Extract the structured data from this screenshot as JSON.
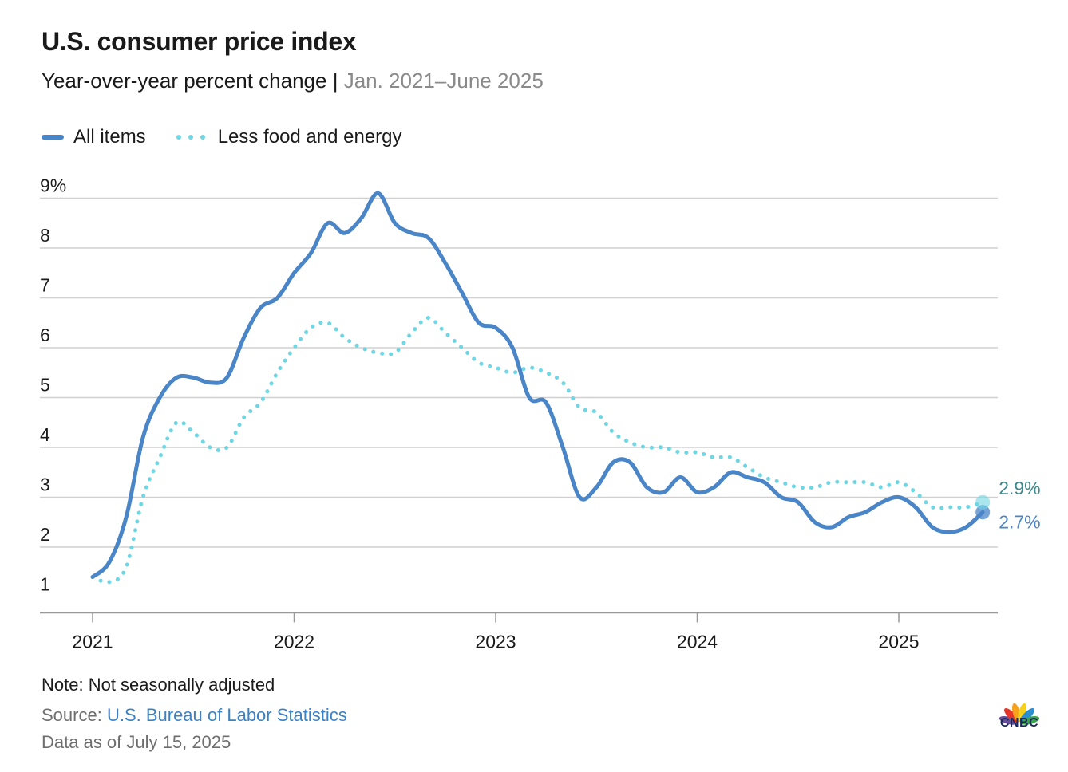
{
  "header": {
    "title": "U.S. consumer price index",
    "subtitle_main": "Year-over-year percent change",
    "subtitle_sep": " | ",
    "subtitle_range": "Jan. 2021–June 2025"
  },
  "legend": {
    "all_items": "All items",
    "core": "Less food and energy"
  },
  "colors": {
    "all_items": "#4a85c8",
    "core": "#6fd6e3",
    "all_items_label": "#4a85c8",
    "core_label": "#3c8a8c",
    "grid": "#d0d0d0",
    "axis": "#999999"
  },
  "chart_data": {
    "type": "line",
    "title": "U.S. consumer price index",
    "subtitle": "Year-over-year percent change | Jan. 2021–June 2025",
    "ylim": [
      1,
      9
    ],
    "yticks": [
      1,
      2,
      3,
      4,
      5,
      6,
      7,
      8,
      9
    ],
    "ytick_labels": [
      "1",
      "2",
      "3",
      "4",
      "5",
      "6",
      "7",
      "8",
      "9%"
    ],
    "xticks": [
      2021,
      2022,
      2023,
      2024,
      2025
    ],
    "xtick_labels": [
      "2021",
      "2022",
      "2023",
      "2024",
      "2025"
    ],
    "x_start": "2021-01",
    "x_end": "2025-06",
    "grid": "horizontal",
    "legend_position": "top-left",
    "series": [
      {
        "name": "All items",
        "style": "solid",
        "end_label": "2.7%",
        "values": [
          1.4,
          1.7,
          2.6,
          4.2,
          5.0,
          5.4,
          5.4,
          5.3,
          5.4,
          6.2,
          6.8,
          7.0,
          7.5,
          7.9,
          8.5,
          8.3,
          8.6,
          9.1,
          8.5,
          8.3,
          8.2,
          7.7,
          7.1,
          6.5,
          6.4,
          6.0,
          5.0,
          4.9,
          4.0,
          3.0,
          3.2,
          3.7,
          3.7,
          3.2,
          3.1,
          3.4,
          3.1,
          3.2,
          3.5,
          3.4,
          3.3,
          3.0,
          2.9,
          2.5,
          2.4,
          2.6,
          2.7,
          2.9,
          3.0,
          2.8,
          2.4,
          2.3,
          2.4,
          2.7
        ]
      },
      {
        "name": "Less food and energy",
        "style": "dotted",
        "end_label": "2.9%",
        "values": [
          1.4,
          1.3,
          1.6,
          3.0,
          3.8,
          4.5,
          4.3,
          4.0,
          4.0,
          4.6,
          4.9,
          5.5,
          6.0,
          6.4,
          6.5,
          6.2,
          6.0,
          5.9,
          5.9,
          6.3,
          6.6,
          6.3,
          6.0,
          5.7,
          5.6,
          5.5,
          5.6,
          5.5,
          5.3,
          4.8,
          4.7,
          4.3,
          4.1,
          4.0,
          4.0,
          3.9,
          3.9,
          3.8,
          3.8,
          3.6,
          3.4,
          3.3,
          3.2,
          3.2,
          3.3,
          3.3,
          3.3,
          3.2,
          3.3,
          3.1,
          2.8,
          2.8,
          2.8,
          2.9
        ]
      }
    ]
  },
  "footer": {
    "note": "Note: Not seasonally adjusted",
    "source_label": "Source: ",
    "source_link": "U.S. Bureau of Labor Statistics",
    "as_of": "Data as of July 15, 2025"
  },
  "brand": {
    "logo_text": "CNBC",
    "logo_icon": "peacock-icon"
  }
}
